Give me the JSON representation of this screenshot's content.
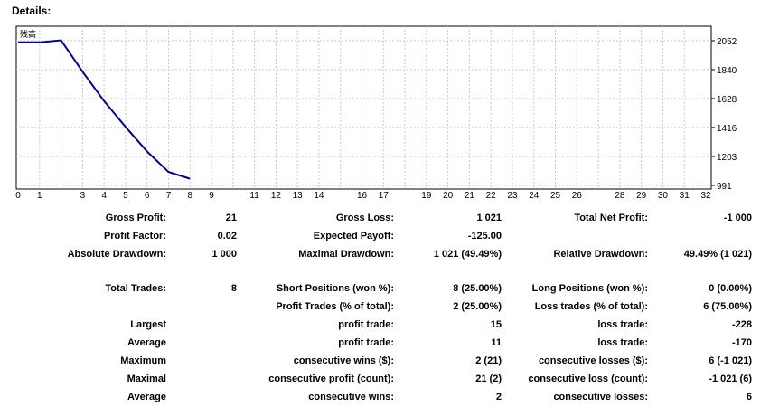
{
  "title": "Details:",
  "chart_data": {
    "type": "line",
    "legend_label": "残高",
    "x_ticks": [
      0,
      1,
      2,
      3,
      4,
      5,
      6,
      7,
      8,
      9,
      10,
      11,
      12,
      13,
      14,
      15,
      16,
      17,
      18,
      19,
      20,
      21,
      22,
      23,
      24,
      25,
      26,
      27,
      28,
      29,
      30,
      31,
      32
    ],
    "x_tick_labels": [
      "0",
      "1",
      "3",
      "4",
      "5",
      "6",
      "7",
      "8",
      "9",
      "11",
      "12",
      "13",
      "14",
      "16",
      "17",
      "19",
      "20",
      "21",
      "22",
      "23",
      "24",
      "25",
      "26",
      "28",
      "29",
      "30",
      "31",
      "32"
    ],
    "y_tick_labels": [
      "2052",
      "1840",
      "1628",
      "1416",
      "1203",
      "991"
    ],
    "xlim": [
      0,
      32
    ],
    "ylim": [
      991,
      2052
    ],
    "grid": true,
    "series": [
      {
        "color": "#00008b",
        "x": [
          0,
          1,
          2,
          3,
          4,
          5,
          6,
          7,
          8
        ],
        "y": [
          2040,
          2040,
          2055,
          1825,
          1610,
          1420,
          1240,
          1090,
          1040
        ]
      }
    ]
  },
  "stats": [
    {
      "label": "Gross Profit:",
      "value": "21"
    },
    {
      "label": "Gross Loss:",
      "value": "1 021"
    },
    {
      "label": "Total Net Profit:",
      "value": "-1 000"
    },
    {
      "label": "Profit Factor:",
      "value": "0.02"
    },
    {
      "label": "Expected Payoff:",
      "value": "-125.00"
    },
    {
      "label": "Absolute Drawdown:",
      "value": "1 000"
    },
    {
      "label": "Maximal Drawdown:",
      "value": "1 021 (49.49%)"
    },
    {
      "label": "Relative Drawdown:",
      "value": "49.49% (1 021)"
    },
    {
      "label": "Total Trades:",
      "value": "8"
    },
    {
      "label": "Short Positions (won %):",
      "value": "8 (25.00%)"
    },
    {
      "label": "Long Positions (won %):",
      "value": "0 (0.00%)"
    },
    {
      "label": "Profit Trades (% of total):",
      "value": "2 (25.00%)"
    },
    {
      "label": "Loss trades (% of total):",
      "value": "6 (75.00%)"
    },
    {
      "label": "Largest",
      "value": ""
    },
    {
      "label": "profit trade:",
      "value": "15"
    },
    {
      "label": "loss trade:",
      "value": "-228"
    },
    {
      "label": "Average",
      "value": ""
    },
    {
      "label": "profit trade:",
      "value": "11"
    },
    {
      "label": "loss trade:",
      "value": "-170"
    },
    {
      "label": "Maximum",
      "value": ""
    },
    {
      "label": "consecutive wins ($):",
      "value": "2 (21)"
    },
    {
      "label": "consecutive losses ($):",
      "value": "6 (-1 021)"
    },
    {
      "label": "Maximal",
      "value": ""
    },
    {
      "label": "consecutive profit (count):",
      "value": "21 (2)"
    },
    {
      "label": "consecutive loss (count):",
      "value": "-1 021 (6)"
    },
    {
      "label": "Average",
      "value": ""
    },
    {
      "label": "consecutive wins:",
      "value": "2"
    },
    {
      "label": "consecutive losses:",
      "value": "6"
    }
  ]
}
